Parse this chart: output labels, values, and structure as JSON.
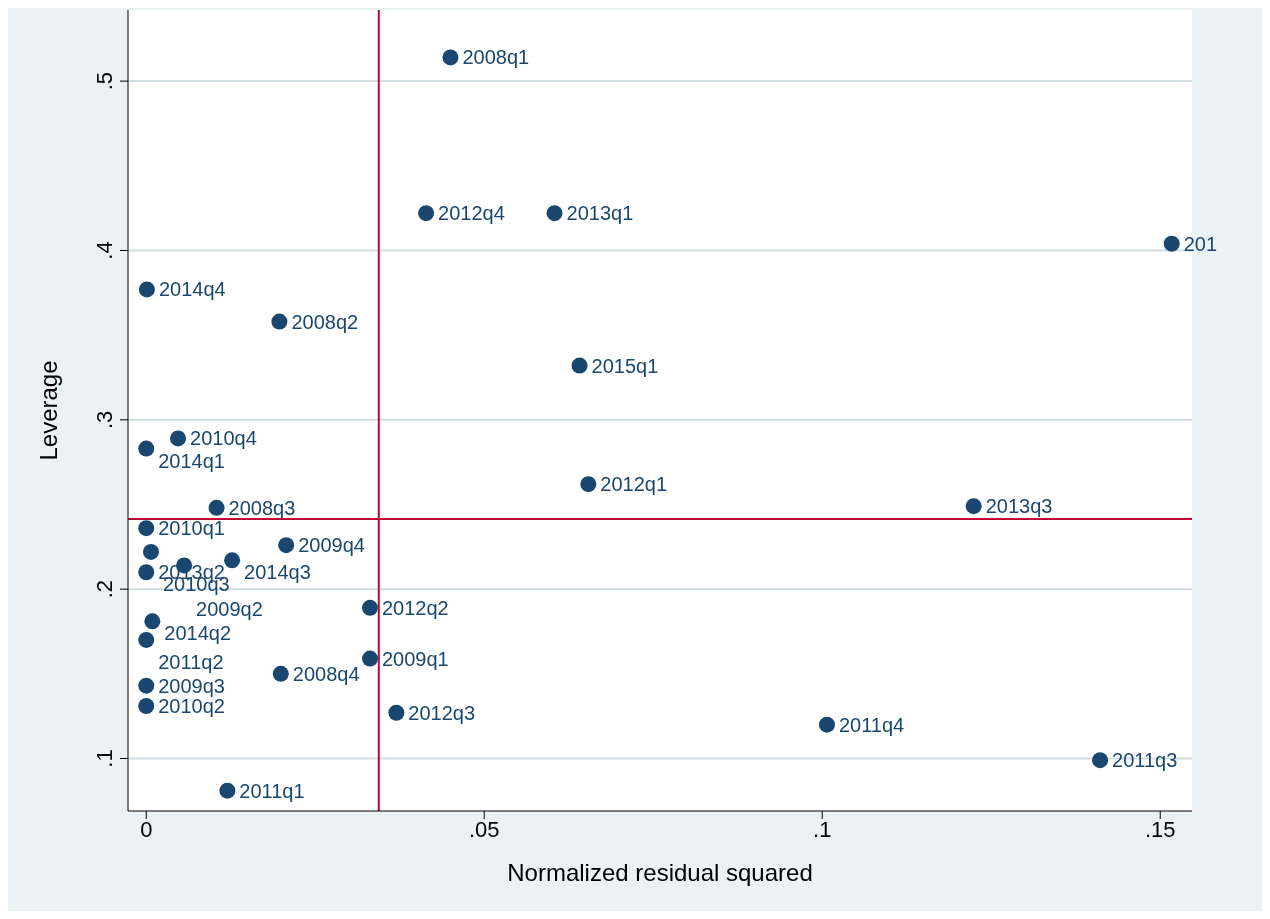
{
  "chart_data": {
    "type": "scatter",
    "xlabel": "Normalized residual squared",
    "ylabel": "Leverage",
    "x": [
      0.045,
      0.0414,
      0.0604,
      0.1517,
      0.0001,
      0.0197,
      0.0641,
      0.0047,
      0.0,
      0.0654,
      0.1224,
      0.0104,
      0.0,
      0.0207,
      0.0007,
      0.0056,
      0.0127,
      0.0,
      0.0331,
      0.0009,
      0.0,
      0.0331,
      0.0199,
      0.0,
      0.0,
      0.037,
      0.1007,
      0.1411,
      0.012
    ],
    "series": [
      {
        "color": "#1a476f",
        "values": [
          0.514,
          0.422,
          0.422,
          0.404,
          0.377,
          0.358,
          0.332,
          0.289,
          0.283,
          0.262,
          0.249,
          0.248,
          0.236,
          0.226,
          0.222,
          0.214,
          0.217,
          0.21,
          0.189,
          0.181,
          0.17,
          0.159,
          0.15,
          0.143,
          0.131,
          0.127,
          0.12,
          0.099,
          0.081
        ]
      }
    ],
    "annotations": [
      {
        "text": "2008q1",
        "x": 0.045,
        "y": 0.514
      },
      {
        "text": "2012q4",
        "x": 0.0414,
        "y": 0.422
      },
      {
        "text": "2013q1",
        "x": 0.0604,
        "y": 0.422
      },
      {
        "text": "201",
        "x": 0.1517,
        "y": 0.404
      },
      {
        "text": "2014q4",
        "x": 0.0001,
        "y": 0.377
      },
      {
        "text": "2008q2",
        "x": 0.0197,
        "y": 0.358
      },
      {
        "text": "2015q1",
        "x": 0.0641,
        "y": 0.332
      },
      {
        "text": "2010q4",
        "x": 0.0047,
        "y": 0.289
      },
      {
        "text": "2014q1",
        "x": 0.0,
        "y": 0.283
      },
      {
        "text": "2012q1",
        "x": 0.0654,
        "y": 0.262
      },
      {
        "text": "2013q3",
        "x": 0.1224,
        "y": 0.249
      },
      {
        "text": "2008q3",
        "x": 0.0104,
        "y": 0.248
      },
      {
        "text": "2010q1",
        "x": 0.0,
        "y": 0.236
      },
      {
        "text": "2009q4",
        "x": 0.0207,
        "y": 0.226
      },
      {
        "text": "2010q3",
        "x": 0.0007,
        "y": 0.222
      },
      {
        "text": "2009q2",
        "x": 0.0056,
        "y": 0.214
      },
      {
        "text": "2014q3",
        "x": 0.0127,
        "y": 0.217
      },
      {
        "text": "2013q2",
        "x": 0.0,
        "y": 0.21
      },
      {
        "text": "2012q2",
        "x": 0.0331,
        "y": 0.189
      },
      {
        "text": "2014q2",
        "x": 0.0009,
        "y": 0.181
      },
      {
        "text": "2011q2",
        "x": 0.0,
        "y": 0.17
      },
      {
        "text": "2009q1",
        "x": 0.0331,
        "y": 0.159
      },
      {
        "text": "2008q4",
        "x": 0.0199,
        "y": 0.15
      },
      {
        "text": "2009q3",
        "x": 0.0,
        "y": 0.143
      },
      {
        "text": "2010q2",
        "x": 0.0,
        "y": 0.131
      },
      {
        "text": "2012q3",
        "x": 0.037,
        "y": 0.127
      },
      {
        "text": "2011q4",
        "x": 0.1007,
        "y": 0.12
      },
      {
        "text": "2011q3",
        "x": 0.1411,
        "y": 0.099
      },
      {
        "text": "2011q1",
        "x": 0.012,
        "y": 0.081
      }
    ],
    "xlim": [
      -0.0027,
      0.1547
    ],
    "xticks": [
      {
        "value": 0,
        "label": "0"
      },
      {
        "value": 0.05,
        "label": ".05"
      },
      {
        "value": 0.1,
        "label": ".1"
      },
      {
        "value": 0.15,
        "label": ".15"
      }
    ],
    "ylim": [
      0.069,
      0.542
    ],
    "yticks": [
      {
        "value": 0.1,
        "label": ".1"
      },
      {
        "value": 0.2,
        "label": ".2"
      },
      {
        "value": 0.3,
        "label": ".3"
      },
      {
        "value": 0.4,
        "label": ".4"
      },
      {
        "value": 0.5,
        "label": ".5"
      }
    ],
    "grid": "y",
    "marker": "circle",
    "legend": false,
    "ref_lines": [
      {
        "axis": "x",
        "value": 0.0344,
        "color": "#c10534"
      },
      {
        "axis": "y",
        "value": 0.2414,
        "color": "#c10534"
      }
    ]
  }
}
